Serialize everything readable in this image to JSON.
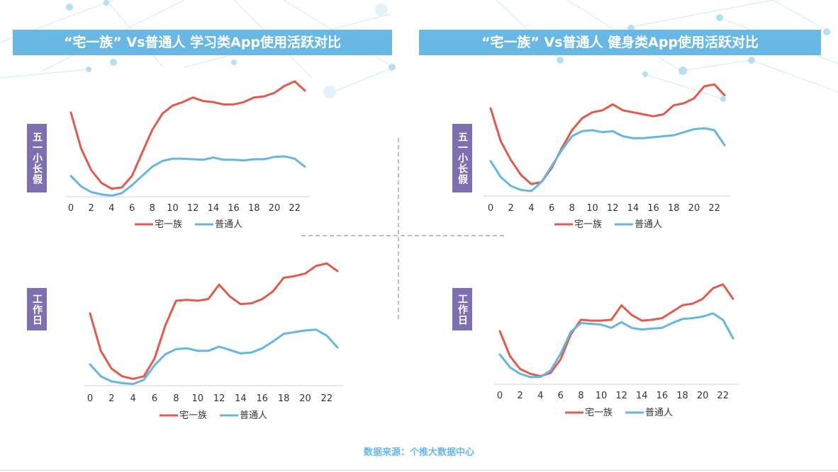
{
  "headers": {
    "left": "“宅一族” Vs普通人  学习类App使用活跃对比",
    "right": "“宅一族” Vs普通人 健身类App使用活跃对比"
  },
  "row_labels": {
    "holiday": "五一小长假",
    "workday": "工作日"
  },
  "source": "数据来源：个推大数据中心",
  "colors": {
    "zhai": "#e05b4b",
    "normal": "#66b6e0",
    "header_bg": "#69b8e3",
    "label_bg": "#7e6fb0"
  },
  "chart_data": [
    {
      "id": "study-holiday",
      "type": "line",
      "x": [
        0,
        1,
        2,
        3,
        4,
        5,
        6,
        7,
        8,
        9,
        10,
        11,
        12,
        13,
        14,
        15,
        16,
        17,
        18,
        19,
        20,
        21,
        22,
        23
      ],
      "xticks": [
        "0",
        "2",
        "4",
        "6",
        "8",
        "10",
        "12",
        "14",
        "16",
        "18",
        "20",
        "22"
      ],
      "series": [
        {
          "name": "宅一族",
          "values": [
            73,
            42,
            23,
            12,
            7,
            8,
            18,
            38,
            58,
            72,
            79,
            82,
            86,
            83,
            82,
            80,
            80,
            82,
            86,
            87,
            90,
            96,
            100,
            92
          ]
        },
        {
          "name": "普通人",
          "values": [
            18,
            9,
            4,
            2,
            1,
            3,
            10,
            18,
            26,
            31,
            33,
            33,
            32.5,
            32,
            34,
            32,
            32,
            31.5,
            32.5,
            32.5,
            34.5,
            35,
            33,
            26
          ]
        }
      ],
      "ylim": [
        0,
        100
      ],
      "legend": "bottom"
    },
    {
      "id": "fitness-holiday",
      "type": "line",
      "x": [
        0,
        1,
        2,
        3,
        4,
        5,
        6,
        7,
        8,
        9,
        10,
        11,
        12,
        13,
        14,
        15,
        16,
        17,
        18,
        19,
        20,
        21,
        22,
        23
      ],
      "xticks": [
        "0",
        "2",
        "4",
        "6",
        "8",
        "10",
        "12",
        "14",
        "16",
        "18",
        "20",
        "22"
      ],
      "series": [
        {
          "name": "宅一族",
          "values": [
            88,
            55,
            36,
            21,
            12,
            14,
            28,
            48,
            66,
            78,
            84,
            86,
            92,
            86,
            84,
            82,
            80,
            82,
            91,
            93,
            98,
            110,
            112,
            101
          ]
        },
        {
          "name": "普通人",
          "values": [
            35,
            19,
            10,
            6,
            5,
            14,
            30,
            46,
            60,
            65,
            66,
            64,
            65,
            60,
            58,
            58,
            59,
            60,
            61,
            64,
            67,
            68,
            66,
            51
          ]
        }
      ],
      "ylim": [
        0,
        115
      ],
      "legend": "bottom"
    },
    {
      "id": "study-workday",
      "type": "line",
      "x": [
        0,
        1,
        2,
        3,
        4,
        5,
        6,
        7,
        8,
        9,
        10,
        11,
        12,
        13,
        14,
        15,
        16,
        17,
        18,
        19,
        20,
        21,
        22,
        23
      ],
      "xticks": [
        "0",
        "2",
        "4",
        "6",
        "8",
        "10",
        "12",
        "14",
        "16",
        "18",
        "20",
        "22"
      ],
      "series": [
        {
          "name": "宅一族",
          "values": [
            85,
            41,
            20,
            11,
            8,
            11,
            32,
            71,
            100,
            101,
            100,
            102,
            119,
            105,
            96,
            97,
            102,
            111,
            127,
            129,
            132,
            141,
            144,
            135
          ]
        },
        {
          "name": "普通人",
          "values": [
            25,
            11,
            5,
            3,
            2,
            7,
            24,
            37,
            43,
            44,
            41,
            41,
            46,
            42,
            38,
            39,
            44,
            52,
            61,
            63,
            65,
            66,
            59,
            45
          ]
        }
      ],
      "ylim": [
        0,
        150
      ],
      "legend": "bottom"
    },
    {
      "id": "fitness-workday",
      "type": "line",
      "x": [
        0,
        1,
        2,
        3,
        4,
        5,
        6,
        7,
        8,
        9,
        10,
        11,
        12,
        13,
        14,
        15,
        16,
        17,
        18,
        19,
        20,
        21,
        22,
        23
      ],
      "xticks": [
        "0",
        "2",
        "4",
        "6",
        "8",
        "10",
        "12",
        "14",
        "16",
        "18",
        "20",
        "22"
      ],
      "series": [
        {
          "name": "宅一族",
          "values": [
            66,
            35,
            19,
            13,
            10,
            14,
            31,
            62,
            80,
            79,
            79,
            80,
            98,
            86,
            79,
            80,
            82,
            90,
            98,
            100,
            106,
            119,
            124,
            106
          ]
        },
        {
          "name": "普通人",
          "values": [
            37,
            21,
            13,
            9,
            9,
            17,
            38,
            65,
            76,
            75,
            74,
            70,
            77,
            70,
            68,
            69,
            70,
            76,
            81,
            82,
            84,
            88,
            80,
            57
          ]
        }
      ],
      "ylim": [
        0,
        130
      ],
      "legend": "bottom"
    }
  ]
}
